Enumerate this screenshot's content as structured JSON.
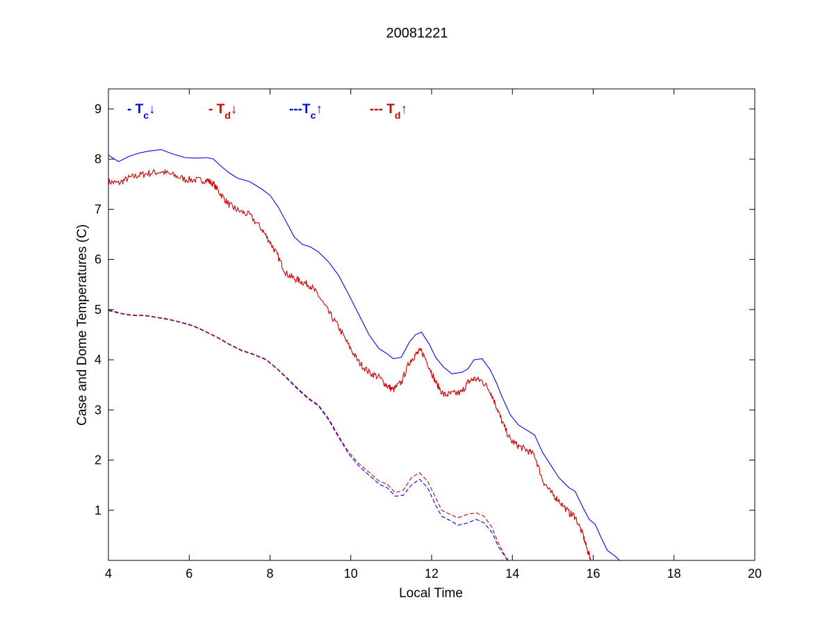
{
  "chart_data": {
    "type": "line",
    "title": "20081221",
    "xlabel": "Local Time",
    "ylabel": "Case and Dome Temperatures (C)",
    "xlim": [
      4,
      20
    ],
    "ylim": [
      0,
      9.4
    ],
    "xticks": [
      4,
      6,
      8,
      10,
      12,
      14,
      16,
      18,
      20
    ],
    "yticks": [
      1,
      2,
      3,
      4,
      5,
      6,
      7,
      8,
      9
    ],
    "grid": false,
    "legend_position": "top-left inside axes",
    "series": [
      {
        "name": "- Tc↓",
        "legend": {
          "prefix": "- T",
          "sub": "c",
          "arrow": "↓"
        },
        "color": "#0000ff",
        "style": "solid",
        "points": [
          [
            4.0,
            8.08
          ],
          [
            4.25,
            7.95
          ],
          [
            4.5,
            8.05
          ],
          [
            4.75,
            8.12
          ],
          [
            5.0,
            8.16
          ],
          [
            5.3,
            8.19
          ],
          [
            5.6,
            8.1
          ],
          [
            5.9,
            8.03
          ],
          [
            6.2,
            8.02
          ],
          [
            6.45,
            8.03
          ],
          [
            6.6,
            8.0
          ],
          [
            6.8,
            7.85
          ],
          [
            7.0,
            7.72
          ],
          [
            7.2,
            7.62
          ],
          [
            7.5,
            7.55
          ],
          [
            7.8,
            7.4
          ],
          [
            8.0,
            7.28
          ],
          [
            8.2,
            7.05
          ],
          [
            8.4,
            6.75
          ],
          [
            8.6,
            6.45
          ],
          [
            8.8,
            6.3
          ],
          [
            9.0,
            6.25
          ],
          [
            9.2,
            6.15
          ],
          [
            9.45,
            5.95
          ],
          [
            9.7,
            5.68
          ],
          [
            9.95,
            5.3
          ],
          [
            10.2,
            4.9
          ],
          [
            10.45,
            4.5
          ],
          [
            10.7,
            4.22
          ],
          [
            10.9,
            4.12
          ],
          [
            11.05,
            4.02
          ],
          [
            11.25,
            4.05
          ],
          [
            11.45,
            4.35
          ],
          [
            11.6,
            4.5
          ],
          [
            11.75,
            4.55
          ],
          [
            11.95,
            4.3
          ],
          [
            12.1,
            4.05
          ],
          [
            12.3,
            3.85
          ],
          [
            12.5,
            3.72
          ],
          [
            12.75,
            3.75
          ],
          [
            12.9,
            3.82
          ],
          [
            13.05,
            4.0
          ],
          [
            13.25,
            4.02
          ],
          [
            13.45,
            3.8
          ],
          [
            13.6,
            3.55
          ],
          [
            13.75,
            3.25
          ],
          [
            13.95,
            2.9
          ],
          [
            14.15,
            2.7
          ],
          [
            14.35,
            2.6
          ],
          [
            14.55,
            2.5
          ],
          [
            14.75,
            2.15
          ],
          [
            14.95,
            1.9
          ],
          [
            15.15,
            1.65
          ],
          [
            15.4,
            1.45
          ],
          [
            15.55,
            1.38
          ],
          [
            15.75,
            1.05
          ],
          [
            15.9,
            0.82
          ],
          [
            16.05,
            0.72
          ],
          [
            16.2,
            0.45
          ],
          [
            16.35,
            0.2
          ],
          [
            16.55,
            0.08
          ],
          [
            16.65,
            0.0
          ]
        ]
      },
      {
        "name": "- Td↓",
        "legend": {
          "prefix": "- T",
          "sub": "d",
          "arrow": "↓"
        },
        "color": "#cc0000",
        "style": "solid-noisy",
        "points": [
          [
            4.0,
            7.55
          ],
          [
            4.25,
            7.52
          ],
          [
            4.5,
            7.62
          ],
          [
            4.75,
            7.68
          ],
          [
            5.0,
            7.72
          ],
          [
            5.3,
            7.75
          ],
          [
            5.6,
            7.68
          ],
          [
            5.9,
            7.6
          ],
          [
            6.2,
            7.58
          ],
          [
            6.45,
            7.58
          ],
          [
            6.6,
            7.5
          ],
          [
            6.8,
            7.28
          ],
          [
            7.0,
            7.08
          ],
          [
            7.2,
            6.98
          ],
          [
            7.5,
            6.88
          ],
          [
            7.8,
            6.6
          ],
          [
            8.0,
            6.35
          ],
          [
            8.2,
            6.05
          ],
          [
            8.4,
            5.72
          ],
          [
            8.6,
            5.62
          ],
          [
            8.8,
            5.55
          ],
          [
            9.0,
            5.48
          ],
          [
            9.2,
            5.28
          ],
          [
            9.45,
            4.95
          ],
          [
            9.7,
            4.65
          ],
          [
            9.95,
            4.28
          ],
          [
            10.2,
            3.95
          ],
          [
            10.45,
            3.75
          ],
          [
            10.7,
            3.65
          ],
          [
            10.9,
            3.48
          ],
          [
            11.05,
            3.4
          ],
          [
            11.25,
            3.55
          ],
          [
            11.45,
            3.95
          ],
          [
            11.6,
            4.1
          ],
          [
            11.75,
            4.18
          ],
          [
            11.95,
            3.85
          ],
          [
            12.1,
            3.55
          ],
          [
            12.3,
            3.3
          ],
          [
            12.5,
            3.32
          ],
          [
            12.75,
            3.35
          ],
          [
            12.9,
            3.55
          ],
          [
            13.05,
            3.62
          ],
          [
            13.25,
            3.58
          ],
          [
            13.45,
            3.38
          ],
          [
            13.6,
            3.08
          ],
          [
            13.75,
            2.75
          ],
          [
            13.95,
            2.4
          ],
          [
            14.15,
            2.28
          ],
          [
            14.35,
            2.2
          ],
          [
            14.55,
            2.1
          ],
          [
            14.75,
            1.6
          ],
          [
            14.95,
            1.35
          ],
          [
            15.15,
            1.2
          ],
          [
            15.4,
            0.95
          ],
          [
            15.55,
            0.88
          ],
          [
            15.75,
            0.5
          ],
          [
            15.85,
            0.22
          ],
          [
            15.95,
            0.0
          ]
        ]
      },
      {
        "name": "---Tc↑",
        "legend": {
          "prefix": "---T",
          "sub": "c",
          "arrow": "↑"
        },
        "color": "#0000ff",
        "style": "dashed",
        "points": [
          [
            4.0,
            4.98
          ],
          [
            4.3,
            4.92
          ],
          [
            4.6,
            4.88
          ],
          [
            4.9,
            4.88
          ],
          [
            5.2,
            4.84
          ],
          [
            5.5,
            4.8
          ],
          [
            5.8,
            4.74
          ],
          [
            6.1,
            4.67
          ],
          [
            6.4,
            4.56
          ],
          [
            6.7,
            4.44
          ],
          [
            7.0,
            4.3
          ],
          [
            7.3,
            4.18
          ],
          [
            7.6,
            4.1
          ],
          [
            7.9,
            4.0
          ],
          [
            8.2,
            3.8
          ],
          [
            8.45,
            3.6
          ],
          [
            8.7,
            3.4
          ],
          [
            8.95,
            3.22
          ],
          [
            9.2,
            3.08
          ],
          [
            9.45,
            2.8
          ],
          [
            9.7,
            2.45
          ],
          [
            9.95,
            2.12
          ],
          [
            10.2,
            1.88
          ],
          [
            10.45,
            1.7
          ],
          [
            10.7,
            1.52
          ],
          [
            10.9,
            1.45
          ],
          [
            11.1,
            1.28
          ],
          [
            11.3,
            1.3
          ],
          [
            11.5,
            1.5
          ],
          [
            11.7,
            1.62
          ],
          [
            11.9,
            1.45
          ],
          [
            12.1,
            1.1
          ],
          [
            12.25,
            0.88
          ],
          [
            12.45,
            0.8
          ],
          [
            12.65,
            0.7
          ],
          [
            12.9,
            0.75
          ],
          [
            13.1,
            0.82
          ],
          [
            13.3,
            0.75
          ],
          [
            13.5,
            0.55
          ],
          [
            13.65,
            0.28
          ],
          [
            13.8,
            0.1
          ],
          [
            13.88,
            0.0
          ]
        ]
      },
      {
        "name": "--- Td↑",
        "legend": {
          "prefix": "--- T",
          "sub": "d",
          "arrow": "↑"
        },
        "color": "#cc0000",
        "style": "dashed",
        "points": [
          [
            4.0,
            5.0
          ],
          [
            4.3,
            4.93
          ],
          [
            4.6,
            4.89
          ],
          [
            4.9,
            4.89
          ],
          [
            5.2,
            4.85
          ],
          [
            5.5,
            4.81
          ],
          [
            5.8,
            4.75
          ],
          [
            6.1,
            4.68
          ],
          [
            6.4,
            4.57
          ],
          [
            6.7,
            4.45
          ],
          [
            7.0,
            4.31
          ],
          [
            7.3,
            4.19
          ],
          [
            7.6,
            4.11
          ],
          [
            7.9,
            4.01
          ],
          [
            8.2,
            3.81
          ],
          [
            8.45,
            3.62
          ],
          [
            8.7,
            3.42
          ],
          [
            8.95,
            3.24
          ],
          [
            9.2,
            3.1
          ],
          [
            9.45,
            2.83
          ],
          [
            9.7,
            2.48
          ],
          [
            9.95,
            2.16
          ],
          [
            10.2,
            1.93
          ],
          [
            10.45,
            1.76
          ],
          [
            10.7,
            1.58
          ],
          [
            10.9,
            1.52
          ],
          [
            11.1,
            1.35
          ],
          [
            11.3,
            1.4
          ],
          [
            11.5,
            1.65
          ],
          [
            11.7,
            1.75
          ],
          [
            11.9,
            1.58
          ],
          [
            12.1,
            1.25
          ],
          [
            12.25,
            1.0
          ],
          [
            12.45,
            0.92
          ],
          [
            12.65,
            0.85
          ],
          [
            12.9,
            0.92
          ],
          [
            13.1,
            0.95
          ],
          [
            13.3,
            0.88
          ],
          [
            13.5,
            0.65
          ],
          [
            13.65,
            0.35
          ],
          [
            13.8,
            0.12
          ],
          [
            13.9,
            0.0
          ]
        ]
      }
    ]
  }
}
